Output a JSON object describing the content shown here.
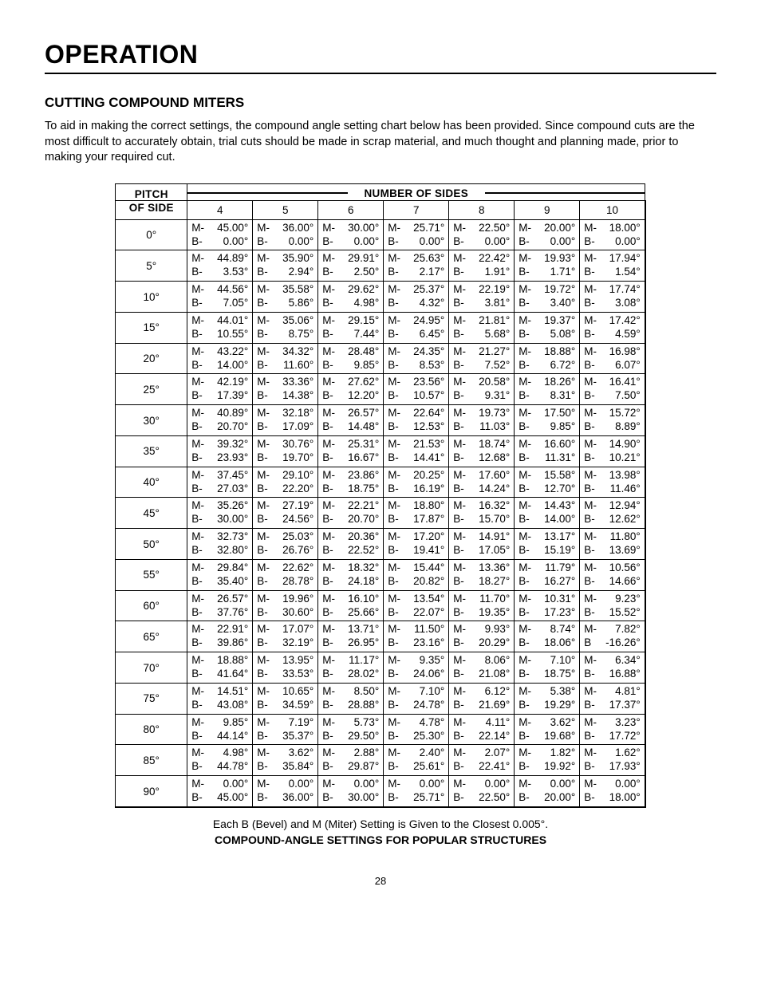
{
  "page_title": "OPERATION",
  "section_title": "CUTTING COMPOUND MITERS",
  "intro": "To aid in making the correct settings, the compound angle setting chart below has been provided. Since compound cuts are the most difficult to accurately obtain, trial cuts should be made in scrap material, and much thought and planning made, prior to making your required cut.",
  "corner_top": "PITCH",
  "corner_bot": "OF SIDE",
  "nos_label": "NUMBER OF SIDES",
  "sides": [
    "4",
    "5",
    "6",
    "7",
    "8",
    "9",
    "10"
  ],
  "note": "Each B (Bevel) and M (Miter) Setting is Given to the Closest 0.005°.",
  "caption": "COMPOUND-ANGLE SETTINGS FOR POPULAR STRUCTURES",
  "page_number": "28",
  "rows": [
    {
      "pitch": "0°",
      "cells": [
        {
          "m": "45.00°",
          "b": "0.00°"
        },
        {
          "m": "36.00°",
          "b": "0.00°"
        },
        {
          "m": "30.00°",
          "b": "0.00°"
        },
        {
          "m": "25.71°",
          "b": "0.00°"
        },
        {
          "m": "22.50°",
          "b": "0.00°"
        },
        {
          "m": "20.00°",
          "b": "0.00°"
        },
        {
          "m": "18.00°",
          "b": "0.00°"
        }
      ]
    },
    {
      "pitch": "5°",
      "cells": [
        {
          "m": "44.89°",
          "b": "3.53°"
        },
        {
          "m": "35.90°",
          "b": "2.94°"
        },
        {
          "m": "29.91°",
          "b": "2.50°"
        },
        {
          "m": "25.63°",
          "b": "2.17°"
        },
        {
          "m": "22.42°",
          "b": "1.91°"
        },
        {
          "m": "19.93°",
          "b": "1.71°"
        },
        {
          "m": "17.94°",
          "b": "1.54°"
        }
      ]
    },
    {
      "pitch": "10°",
      "cells": [
        {
          "m": "44.56°",
          "b": "7.05°"
        },
        {
          "m": "35.58°",
          "b": "5.86°"
        },
        {
          "m": "29.62°",
          "b": "4.98°"
        },
        {
          "m": "25.37°",
          "b": "4.32°"
        },
        {
          "m": "22.19°",
          "b": "3.81°"
        },
        {
          "m": "19.72°",
          "b": "3.40°"
        },
        {
          "m": "17.74°",
          "b": "3.08°"
        }
      ]
    },
    {
      "pitch": "15°",
      "cells": [
        {
          "m": "44.01°",
          "b": "10.55°"
        },
        {
          "m": "35.06°",
          "b": "8.75°"
        },
        {
          "m": "29.15°",
          "b": "7.44°"
        },
        {
          "m": "24.95°",
          "b": "6.45°"
        },
        {
          "m": "21.81°",
          "b": "5.68°"
        },
        {
          "m": "19.37°",
          "b": "5.08°"
        },
        {
          "m": "17.42°",
          "b": "4.59°"
        }
      ]
    },
    {
      "pitch": "20°",
      "cells": [
        {
          "m": "43.22°",
          "b": "14.00°"
        },
        {
          "m": "34.32°",
          "b": "11.60°"
        },
        {
          "m": "28.48°",
          "b": "9.85°"
        },
        {
          "m": "24.35°",
          "b": "8.53°"
        },
        {
          "m": "21.27°",
          "b": "7.52°"
        },
        {
          "m": "18.88°",
          "b": "6.72°"
        },
        {
          "m": "16.98°",
          "b": "6.07°"
        }
      ]
    },
    {
      "pitch": "25°",
      "cells": [
        {
          "m": "42.19°",
          "b": "17.39°"
        },
        {
          "m": "33.36°",
          "b": "14.38°"
        },
        {
          "m": "27.62°",
          "b": "12.20°"
        },
        {
          "m": "23.56°",
          "b": "10.57°"
        },
        {
          "m": "20.58°",
          "b": "9.31°"
        },
        {
          "m": "18.26°",
          "b": "8.31°"
        },
        {
          "m": "16.41°",
          "b": "7.50°"
        }
      ]
    },
    {
      "pitch": "30°",
      "cells": [
        {
          "m": "40.89°",
          "b": "20.70°"
        },
        {
          "m": "32.18°",
          "b": "17.09°"
        },
        {
          "m": "26.57°",
          "b": "14.48°"
        },
        {
          "m": "22.64°",
          "b": "12.53°"
        },
        {
          "m": "19.73°",
          "b": "11.03°"
        },
        {
          "m": "17.50°",
          "b": "9.85°"
        },
        {
          "m": "15.72°",
          "b": "8.89°"
        }
      ]
    },
    {
      "pitch": "35°",
      "cells": [
        {
          "m": "39.32°",
          "b": "23.93°"
        },
        {
          "m": "30.76°",
          "b": "19.70°"
        },
        {
          "m": "25.31°",
          "b": "16.67°"
        },
        {
          "m": "21.53°",
          "b": "14.41°"
        },
        {
          "m": "18.74°",
          "b": "12.68°"
        },
        {
          "m": "16.60°",
          "b": "11.31°"
        },
        {
          "m": "14.90°",
          "b": "10.21°"
        }
      ]
    },
    {
      "pitch": "40°",
      "cells": [
        {
          "m": "37.45°",
          "b": "27.03°"
        },
        {
          "m": "29.10°",
          "b": "22.20°"
        },
        {
          "m": "23.86°",
          "b": "18.75°"
        },
        {
          "m": "20.25°",
          "b": "16.19°"
        },
        {
          "m": "17.60°",
          "b": "14.24°"
        },
        {
          "m": "15.58°",
          "b": "12.70°"
        },
        {
          "m": "13.98°",
          "b": "11.46°"
        }
      ]
    },
    {
      "pitch": "45°",
      "cells": [
        {
          "m": "35.26°",
          "b": "30.00°"
        },
        {
          "m": "27.19°",
          "b": "24.56°"
        },
        {
          "m": "22.21°",
          "b": "20.70°"
        },
        {
          "m": "18.80°",
          "b": "17.87°"
        },
        {
          "m": "16.32°",
          "b": "15.70°"
        },
        {
          "m": "14.43°",
          "b": "14.00°"
        },
        {
          "m": "12.94°",
          "b": "12.62°"
        }
      ]
    },
    {
      "pitch": "50°",
      "cells": [
        {
          "m": "32.73°",
          "b": "32.80°"
        },
        {
          "m": "25.03°",
          "b": "26.76°"
        },
        {
          "m": "20.36°",
          "b": "22.52°"
        },
        {
          "m": "17.20°",
          "b": "19.41°"
        },
        {
          "m": "14.91°",
          "b": "17.05°"
        },
        {
          "m": "13.17°",
          "b": "15.19°"
        },
        {
          "m": "11.80°",
          "b": "13.69°"
        }
      ]
    },
    {
      "pitch": "55°",
      "cells": [
        {
          "m": "29.84°",
          "b": "35.40°"
        },
        {
          "m": "22.62°",
          "b": "28.78°"
        },
        {
          "m": "18.32°",
          "b": "24.18°"
        },
        {
          "m": "15.44°",
          "b": "20.82°"
        },
        {
          "m": "13.36°",
          "b": "18.27°"
        },
        {
          "m": "11.79°",
          "b": "16.27°"
        },
        {
          "m": "10.56°",
          "b": "14.66°"
        }
      ]
    },
    {
      "pitch": "60°",
      "cells": [
        {
          "m": "26.57°",
          "b": "37.76°"
        },
        {
          "m": "19.96°",
          "b": "30.60°"
        },
        {
          "m": "16.10°",
          "b": "25.66°"
        },
        {
          "m": "13.54°",
          "b": "22.07°"
        },
        {
          "m": "11.70°",
          "b": "19.35°"
        },
        {
          "m": "10.31°",
          "b": "17.23°"
        },
        {
          "m": "9.23°",
          "b": "15.52°"
        }
      ]
    },
    {
      "pitch": "65°",
      "cells": [
        {
          "m": "22.91°",
          "b": "39.86°"
        },
        {
          "m": "17.07°",
          "b": "32.19°"
        },
        {
          "m": "13.71°",
          "b": "26.95°"
        },
        {
          "m": "11.50°",
          "b": "23.16°"
        },
        {
          "m": "9.93°",
          "b": "20.29°"
        },
        {
          "m": "8.74°",
          "b": "18.06°"
        },
        {
          "m": "7.82°",
          "b": "-16.26°"
        }
      ]
    },
    {
      "pitch": "70°",
      "cells": [
        {
          "m": "18.88°",
          "b": "41.64°"
        },
        {
          "m": "13.95°",
          "b": "33.53°"
        },
        {
          "m": "11.17°",
          "b": "28.02°"
        },
        {
          "m": "9.35°",
          "b": "24.06°"
        },
        {
          "m": "8.06°",
          "b": "21.08°"
        },
        {
          "m": "7.10°",
          "b": "18.75°"
        },
        {
          "m": "6.34°",
          "b": "16.88°"
        }
      ]
    },
    {
      "pitch": "75°",
      "cells": [
        {
          "m": "14.51°",
          "b": "43.08°"
        },
        {
          "m": "10.65°",
          "b": "34.59°"
        },
        {
          "m": "8.50°",
          "b": "28.88°"
        },
        {
          "m": "7.10°",
          "b": "24.78°"
        },
        {
          "m": "6.12°",
          "b": "21.69°"
        },
        {
          "m": "5.38°",
          "b": "19.29°"
        },
        {
          "m": "4.81°",
          "b": "17.37°"
        }
      ]
    },
    {
      "pitch": "80°",
      "cells": [
        {
          "m": "9.85°",
          "b": "44.14°"
        },
        {
          "m": "7.19°",
          "b": "35.37°"
        },
        {
          "m": "5.73°",
          "b": "29.50°"
        },
        {
          "m": "4.78°",
          "b": "25.30°"
        },
        {
          "m": "4.11°",
          "b": "22.14°"
        },
        {
          "m": "3.62°",
          "b": "19.68°"
        },
        {
          "m": "3.23°",
          "b": "17.72°"
        }
      ]
    },
    {
      "pitch": "85°",
      "cells": [
        {
          "m": "4.98°",
          "b": "44.78°"
        },
        {
          "m": "3.62°",
          "b": "35.84°"
        },
        {
          "m": "2.88°",
          "b": "29.87°"
        },
        {
          "m": "2.40°",
          "b": "25.61°"
        },
        {
          "m": "2.07°",
          "b": "22.41°"
        },
        {
          "m": "1.82°",
          "b": "19.92°"
        },
        {
          "m": "1.62°",
          "b": "17.93°"
        }
      ]
    },
    {
      "pitch": "90°",
      "cells": [
        {
          "m": "0.00°",
          "b": "45.00°"
        },
        {
          "m": "0.00°",
          "b": "36.00°"
        },
        {
          "m": "0.00°",
          "b": "30.00°"
        },
        {
          "m": "0.00°",
          "b": "25.71°"
        },
        {
          "m": "0.00°",
          "b": "22.50°"
        },
        {
          "m": "0.00°",
          "b": "20.00°"
        },
        {
          "m": "0.00°",
          "b": "18.00°"
        }
      ]
    }
  ]
}
